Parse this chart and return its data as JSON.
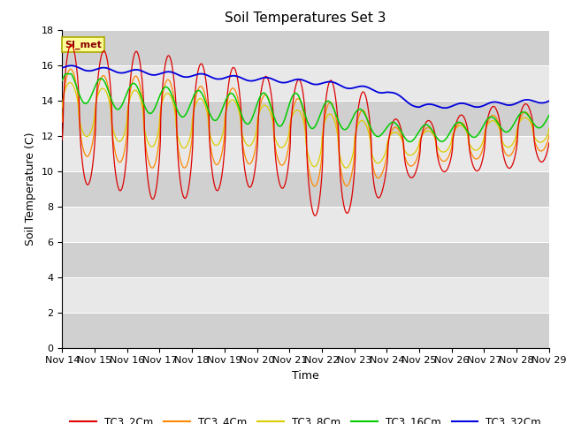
{
  "title": "Soil Temperatures Set 3",
  "xlabel": "Time",
  "ylabel": "Soil Temperature (C)",
  "ylim": [
    0,
    18
  ],
  "yticks": [
    0,
    2,
    4,
    6,
    8,
    10,
    12,
    14,
    16,
    18
  ],
  "xtick_labels": [
    "Nov 14",
    "Nov 15",
    "Nov 16",
    "Nov 17",
    "Nov 18",
    "Nov 19",
    "Nov 20",
    "Nov 21",
    "Nov 22",
    "Nov 23",
    "Nov 24",
    "Nov 25",
    "Nov 26",
    "Nov 27",
    "Nov 28",
    "Nov 29"
  ],
  "series_colors": [
    "#dd0000",
    "#ff8800",
    "#ddcc00",
    "#00cc00",
    "#0000dd"
  ],
  "series_names": [
    "TC3_2Cm",
    "TC3_4Cm",
    "TC3_8Cm",
    "TC3_16Cm",
    "TC3_32Cm"
  ],
  "annotation_text": "SI_met",
  "annotation_bg": "#ffff99",
  "annotation_border": "#aaaa00",
  "plot_bg_light": "#eeeeee",
  "plot_bg_dark": "#dddddd",
  "title_fontsize": 11,
  "axis_label_fontsize": 9,
  "tick_fontsize": 8
}
